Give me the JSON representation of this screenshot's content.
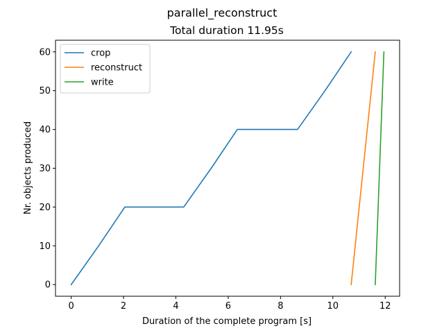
{
  "chart_data": {
    "type": "line",
    "suptitle": "parallel_reconstruct",
    "title": "Total duration 11.95s",
    "xlabel": "Duration of the complete program [s]",
    "ylabel": "Nr. objects produced",
    "xlim": [
      -0.6,
      12.55
    ],
    "ylim": [
      -3,
      63
    ],
    "xticks": [
      0,
      2,
      4,
      6,
      8,
      10,
      12
    ],
    "yticks": [
      0,
      10,
      20,
      30,
      40,
      50,
      60
    ],
    "grid": false,
    "legend_position": "top-left",
    "series": [
      {
        "name": "crop",
        "color": "#1f77b4",
        "x": [
          0,
          1.05,
          2.05,
          3.2,
          4.3,
          5.35,
          6.35,
          7.5,
          8.65,
          9.7,
          10.7
        ],
        "y": [
          0,
          10,
          20,
          20,
          20,
          30,
          40,
          40,
          40,
          50,
          60
        ]
      },
      {
        "name": "reconstruct",
        "color": "#ff7f0e",
        "x": [
          10.7,
          11.62
        ],
        "y": [
          0,
          60
        ]
      },
      {
        "name": "write",
        "color": "#2ca02c",
        "x": [
          11.62,
          11.95
        ],
        "y": [
          0,
          60
        ]
      }
    ]
  }
}
